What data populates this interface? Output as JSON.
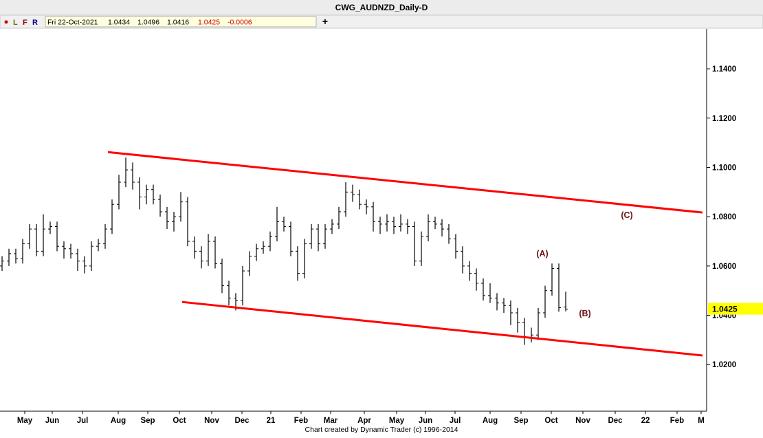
{
  "window_title": "CWG_AUDNZD_Daily-D",
  "toolbar": [
    "L",
    "F",
    "R"
  ],
  "info": {
    "date": "Fri 22-Oct-2021",
    "change": -0.0006
  },
  "footer": "Chart created by Dynamic Trader  (c) 1996-2014",
  "chart_data": {
    "type": "ohlc",
    "color": "#000000",
    "x": [
      0,
      1,
      2,
      3,
      4,
      5,
      6,
      7,
      8,
      9,
      10,
      11,
      12,
      13,
      14,
      15,
      16,
      17,
      18,
      19,
      20,
      21,
      22,
      23,
      24,
      25,
      26,
      27,
      28,
      29,
      30,
      31,
      32,
      33,
      34,
      35,
      36,
      37,
      38,
      39,
      40,
      41,
      42,
      43,
      44,
      45,
      46,
      47,
      48,
      49,
      50,
      51,
      52,
      53,
      54,
      55,
      56,
      57,
      58,
      59,
      60,
      61,
      62,
      63,
      64,
      65,
      66,
      67,
      68,
      69,
      70,
      71,
      72,
      73,
      74,
      75,
      76,
      77,
      78,
      79,
      80,
      81,
      82
    ],
    "open": [
      1.06,
      1.062,
      1.065,
      1.063,
      1.069,
      1.075,
      1.066,
      1.075,
      1.076,
      1.068,
      1.067,
      1.065,
      1.062,
      1.06,
      1.068,
      1.069,
      1.075,
      1.085,
      1.094,
      1.099,
      1.094,
      1.088,
      1.091,
      1.087,
      1.082,
      1.078,
      1.08,
      1.086,
      1.07,
      1.066,
      1.062,
      1.07,
      1.061,
      1.052,
      1.047,
      1.046,
      1.058,
      1.064,
      1.067,
      1.068,
      1.072,
      1.078,
      1.076,
      1.066,
      1.057,
      1.069,
      1.075,
      1.069,
      1.075,
      1.077,
      1.082,
      1.09,
      1.089,
      1.085,
      1.084,
      1.078,
      1.077,
      1.078,
      1.076,
      1.077,
      1.076,
      1.062,
      1.072,
      1.078,
      1.077,
      1.075,
      1.071,
      1.066,
      1.06,
      1.057,
      1.053,
      1.048,
      1.047,
      1.045,
      1.044,
      1.041,
      1.037,
      1.031,
      1.032,
      1.041,
      1.05,
      1.059,
      1.0434
    ],
    "high": [
      1.064,
      1.067,
      1.067,
      1.071,
      1.077,
      1.077,
      1.081,
      1.078,
      1.078,
      1.07,
      1.069,
      1.067,
      1.064,
      1.07,
      1.071,
      1.077,
      1.087,
      1.097,
      1.104,
      1.102,
      1.096,
      1.093,
      1.093,
      1.089,
      1.084,
      1.082,
      1.09,
      1.088,
      1.072,
      1.068,
      1.073,
      1.072,
      1.063,
      1.054,
      1.049,
      1.06,
      1.066,
      1.069,
      1.07,
      1.074,
      1.084,
      1.08,
      1.078,
      1.068,
      1.071,
      1.077,
      1.077,
      1.077,
      1.079,
      1.084,
      1.094,
      1.093,
      1.091,
      1.087,
      1.086,
      1.08,
      1.081,
      1.08,
      1.081,
      1.079,
      1.078,
      1.074,
      1.081,
      1.08,
      1.079,
      1.077,
      1.073,
      1.068,
      1.062,
      1.059,
      1.055,
      1.053,
      1.049,
      1.047,
      1.046,
      1.043,
      1.039,
      1.035,
      1.043,
      1.052,
      1.061,
      1.061,
      1.0496
    ],
    "low": [
      1.058,
      1.06,
      1.061,
      1.061,
      1.067,
      1.064,
      1.064,
      1.073,
      1.066,
      1.063,
      1.063,
      1.058,
      1.057,
      1.058,
      1.066,
      1.067,
      1.073,
      1.083,
      1.092,
      1.091,
      1.083,
      1.085,
      1.085,
      1.08,
      1.075,
      1.074,
      1.078,
      1.068,
      1.063,
      1.059,
      1.06,
      1.059,
      1.049,
      1.044,
      1.042,
      1.044,
      1.056,
      1.062,
      1.065,
      1.066,
      1.07,
      1.074,
      1.064,
      1.054,
      1.055,
      1.067,
      1.066,
      1.067,
      1.073,
      1.075,
      1.08,
      1.086,
      1.083,
      1.081,
      1.074,
      1.073,
      1.074,
      1.073,
      1.074,
      1.073,
      1.06,
      1.06,
      1.07,
      1.075,
      1.072,
      1.069,
      1.063,
      1.057,
      1.054,
      1.05,
      1.046,
      1.045,
      1.042,
      1.041,
      1.036,
      1.033,
      1.028,
      1.029,
      1.03,
      1.039,
      1.048,
      1.0415,
      1.0416
    ],
    "close": [
      1.062,
      1.065,
      1.063,
      1.069,
      1.075,
      1.066,
      1.075,
      1.076,
      1.068,
      1.067,
      1.065,
      1.062,
      1.06,
      1.068,
      1.069,
      1.075,
      1.085,
      1.094,
      1.099,
      1.094,
      1.088,
      1.091,
      1.087,
      1.082,
      1.078,
      1.08,
      1.086,
      1.07,
      1.066,
      1.062,
      1.07,
      1.061,
      1.052,
      1.047,
      1.046,
      1.058,
      1.064,
      1.067,
      1.068,
      1.072,
      1.078,
      1.076,
      1.066,
      1.057,
      1.069,
      1.075,
      1.069,
      1.075,
      1.077,
      1.082,
      1.09,
      1.089,
      1.085,
      1.084,
      1.078,
      1.077,
      1.078,
      1.076,
      1.077,
      1.076,
      1.062,
      1.072,
      1.078,
      1.077,
      1.075,
      1.071,
      1.066,
      1.06,
      1.057,
      1.053,
      1.048,
      1.047,
      1.045,
      1.044,
      1.041,
      1.037,
      1.031,
      1.032,
      1.041,
      1.05,
      1.059,
      1.0431,
      1.0425
    ],
    "xlim": [
      -0.3,
      102.5
    ],
    "ylim": [
      1.0011,
      1.1562
    ],
    "yticks": [
      {
        "value": 1.02,
        "label": "1.0200"
      },
      {
        "value": 1.04,
        "label": "1.0400"
      },
      {
        "value": 1.06,
        "label": "1.0600"
      },
      {
        "value": 1.08,
        "label": "1.0800"
      },
      {
        "value": 1.1,
        "label": "1.1000"
      },
      {
        "value": 1.12,
        "label": "1.1200"
      },
      {
        "value": 1.14,
        "label": "1.1400"
      }
    ],
    "xticks": [
      {
        "value": 3.3,
        "label": "May"
      },
      {
        "value": 7.3,
        "label": "Jun"
      },
      {
        "value": 11.7,
        "label": "Jul"
      },
      {
        "value": 16.9,
        "label": "Aug"
      },
      {
        "value": 21.2,
        "label": "Sep"
      },
      {
        "value": 25.8,
        "label": "Oct"
      },
      {
        "value": 30.5,
        "label": "Nov"
      },
      {
        "value": 34.9,
        "label": "Dec"
      },
      {
        "value": 39.1,
        "label": "21"
      },
      {
        "value": 43.5,
        "label": "Feb"
      },
      {
        "value": 47.8,
        "label": "Mar"
      },
      {
        "value": 52.7,
        "label": "Apr"
      },
      {
        "value": 57.4,
        "label": "May"
      },
      {
        "value": 61.6,
        "label": "Jun"
      },
      {
        "value": 65.9,
        "label": "Jul"
      },
      {
        "value": 71,
        "label": "Aug"
      },
      {
        "value": 75.5,
        "label": "Sep"
      },
      {
        "value": 79.9,
        "label": "Oct"
      },
      {
        "value": 84.5,
        "label": "Nov"
      },
      {
        "value": 89.2,
        "label": "Dec"
      },
      {
        "value": 93.6,
        "label": "22"
      },
      {
        "value": 98.2,
        "label": "Feb"
      },
      {
        "value": 101.7,
        "label": "M"
      }
    ],
    "trendlines": [
      {
        "color": "#ff0000",
        "x": [
          15.4,
          101.9
        ],
        "values": [
          1.1062,
          1.0817
        ]
      },
      {
        "color": "#ff0000",
        "x": [
          26.2,
          101.9
        ],
        "values": [
          1.0454,
          1.0237
        ]
      }
    ],
    "annotations": [
      "(A)",
      "(B)",
      "(C)"
    ],
    "last_price_color": "#ffff00"
  }
}
